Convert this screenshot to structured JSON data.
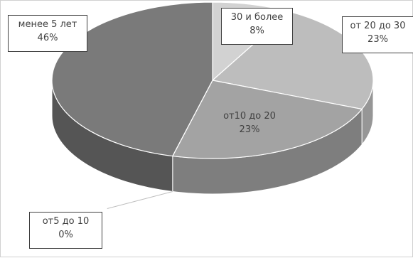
{
  "chart_data": {
    "type": "pie",
    "style": "3d",
    "slices": [
      {
        "category": "30 и более",
        "value": 8,
        "percent_label": "8%",
        "color": "#d2d2d2",
        "side_color": "#a9a9a9"
      },
      {
        "category": "от 20 до 30",
        "value": 23,
        "percent_label": "23%",
        "color": "#bdbdbd",
        "side_color": "#969696"
      },
      {
        "category": "от10 до 20",
        "value": 23,
        "percent_label": "23%",
        "color": "#a3a3a3",
        "side_color": "#7e7e7e"
      },
      {
        "category": "от5 до 10",
        "value": 0,
        "percent_label": "0%",
        "color": "#8e8e8e",
        "side_color": "#6a6a6a"
      },
      {
        "category": "менее 5 лет",
        "value": 46,
        "percent_label": "46%",
        "color": "#7a7a7a",
        "side_color": "#555555"
      }
    ],
    "start_angle_deg": 0,
    "direction": "clockwise",
    "legend": "none"
  }
}
